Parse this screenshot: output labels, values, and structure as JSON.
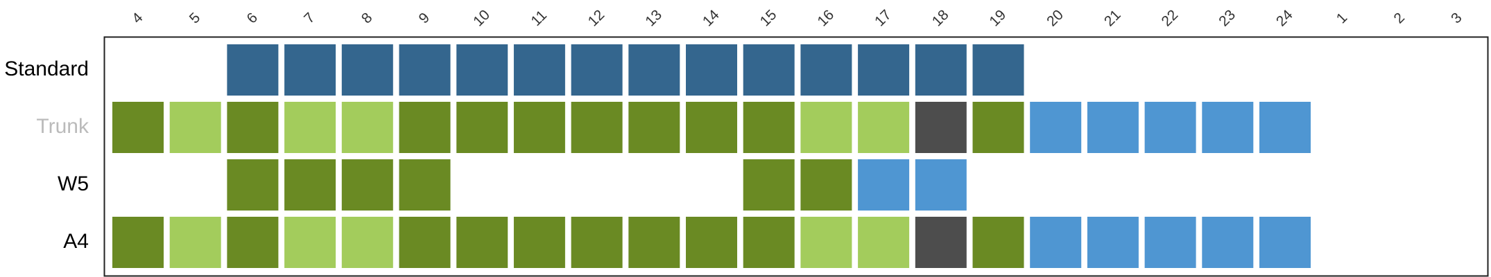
{
  "chart_data": {
    "type": "heatmap",
    "x_ticks": [
      "4",
      "5",
      "6",
      "7",
      "8",
      "9",
      "10",
      "11",
      "12",
      "13",
      "14",
      "15",
      "16",
      "17",
      "18",
      "19",
      "20",
      "21",
      "22",
      "23",
      "24",
      "1",
      "2",
      "3"
    ],
    "rows": [
      {
        "label": "Standard",
        "label_color": "#000000",
        "cells": [
          "",
          "",
          "navy",
          "navy",
          "navy",
          "navy",
          "navy",
          "navy",
          "navy",
          "navy",
          "navy",
          "navy",
          "navy",
          "navy",
          "navy",
          "navy",
          "",
          "",
          "",
          "",
          "",
          "",
          "",
          ""
        ]
      },
      {
        "label": "Trunk",
        "label_color": "#bbbbbb",
        "cells": [
          "dark_green",
          "light_green",
          "dark_green",
          "light_green",
          "light_green",
          "dark_green",
          "dark_green",
          "dark_green",
          "dark_green",
          "dark_green",
          "dark_green",
          "dark_green",
          "light_green",
          "light_green",
          "charcoal",
          "dark_green",
          "sky_blue",
          "sky_blue",
          "sky_blue",
          "sky_blue",
          "sky_blue",
          "",
          "",
          ""
        ]
      },
      {
        "label": "W5",
        "label_color": "#000000",
        "cells": [
          "",
          "",
          "dark_green",
          "dark_green",
          "dark_green",
          "dark_green",
          "",
          "",
          "",
          "",
          "",
          "dark_green",
          "dark_green",
          "sky_blue",
          "sky_blue",
          "",
          "",
          "",
          "",
          "",
          "",
          "",
          "",
          ""
        ]
      },
      {
        "label": "A4",
        "label_color": "#000000",
        "cells": [
          "dark_green",
          "light_green",
          "dark_green",
          "light_green",
          "light_green",
          "dark_green",
          "dark_green",
          "dark_green",
          "dark_green",
          "dark_green",
          "dark_green",
          "dark_green",
          "light_green",
          "light_green",
          "charcoal",
          "dark_green",
          "sky_blue",
          "sky_blue",
          "sky_blue",
          "sky_blue",
          "sky_blue",
          "",
          "",
          ""
        ]
      }
    ],
    "colors": {
      "navy": "#34668e",
      "dark_green": "#6a8a23",
      "light_green": "#a3cc5c",
      "charcoal": "#4d4d4d",
      "sky_blue": "#4f96d2",
      "frame": "#222222"
    },
    "grid": false,
    "legend": "none"
  }
}
